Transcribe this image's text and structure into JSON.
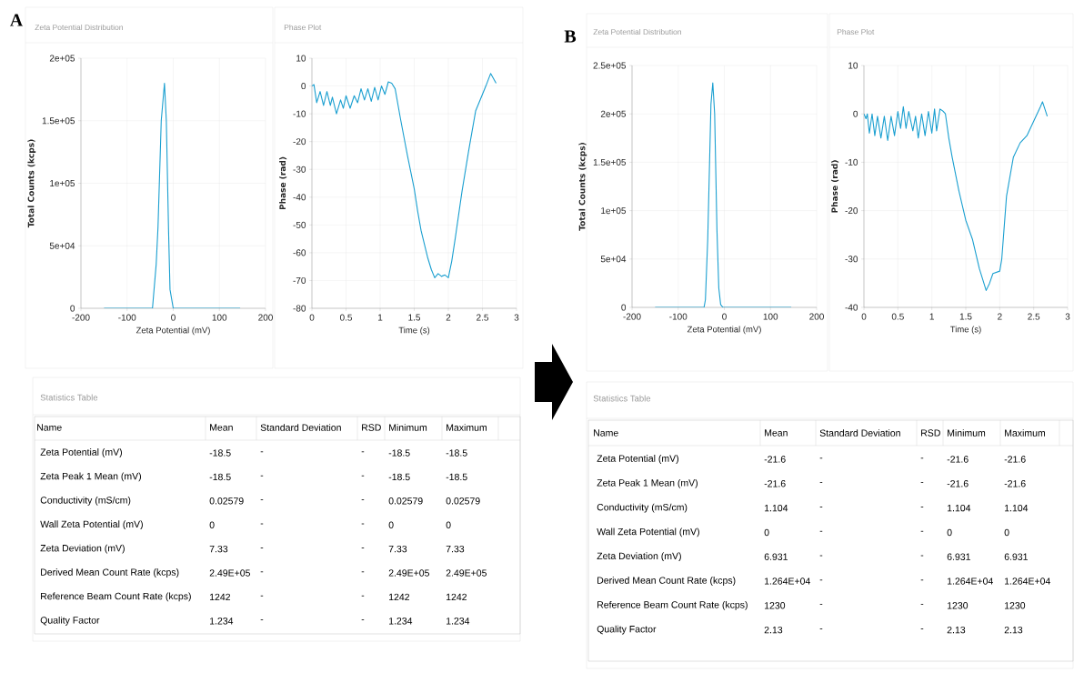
{
  "chart_data": [
    {
      "type": "line",
      "title": "Zeta Potential Distribution",
      "xlabel": "Zeta Potential (mV)",
      "ylabel": "Total Counts (kcps)",
      "annotations": [
        "A"
      ],
      "color": "#1a9fd0",
      "grid": true,
      "x": [
        -150,
        -45,
        -37,
        -33,
        -26,
        -19,
        -15,
        -10,
        -7,
        0,
        145
      ],
      "values": [
        0,
        0,
        35000,
        65000,
        150000,
        180000,
        150000,
        60000,
        15000,
        0,
        0
      ],
      "xlim": [
        -200,
        200
      ],
      "ylim": [
        0,
        200000
      ],
      "xticks": [
        -200,
        -100,
        0,
        100,
        200
      ],
      "yticks": [
        0,
        {
          "value": 50000,
          "label": "5e+04"
        },
        {
          "value": 100000,
          "label": "1e+05"
        },
        {
          "value": 150000,
          "label": "1.5e+05"
        },
        {
          "value": 200000,
          "label": "2e+05"
        }
      ]
    },
    {
      "type": "line",
      "title": "Phase Plot",
      "xlabel": "Time (s)",
      "ylabel": "Phase (rad)",
      "color": "#1a9fd0",
      "grid": true,
      "x": [
        0,
        0.03,
        0.07,
        0.12,
        0.17,
        0.22,
        0.27,
        0.3,
        0.36,
        0.42,
        0.46,
        0.5,
        0.56,
        0.62,
        0.67,
        0.72,
        0.77,
        0.82,
        0.87,
        0.92,
        0.97,
        1.02,
        1.07,
        1.12,
        1.17,
        1.22,
        1.3,
        1.4,
        1.5,
        1.55,
        1.6,
        1.7,
        1.75,
        1.8,
        1.85,
        1.9,
        1.95,
        2.0,
        2.05,
        2.1,
        2.2,
        2.3,
        2.4,
        2.5,
        2.55,
        2.62,
        2.7
      ],
      "values": [
        0,
        0.5,
        -6,
        -2,
        -7,
        -2,
        -7,
        -4,
        -10,
        -5,
        -8,
        -3.5,
        -8,
        -3.5,
        -6,
        -1,
        -5,
        -1,
        -5.5,
        -0.5,
        -5,
        0,
        -3,
        1.5,
        1,
        -1,
        -12,
        -25,
        -37,
        -45,
        -52,
        -62,
        -66,
        -69,
        -67.5,
        -68.5,
        -68,
        -69,
        -63,
        -55,
        -38,
        -23,
        -9,
        -3,
        0,
        4.5,
        1
      ],
      "xlim": [
        0,
        3
      ],
      "ylim": [
        -80,
        10
      ],
      "xticks": [
        0,
        0.5,
        1,
        1.5,
        2,
        2.5,
        3
      ],
      "yticks": [
        -80,
        -70,
        -60,
        -50,
        -40,
        -30,
        -20,
        -10,
        0,
        10
      ]
    },
    {
      "type": "other",
      "title": "Statistics Table",
      "ylabel": "Name",
      "categories": [
        "Mean",
        "Standard Deviation",
        "RSD",
        "Minimum",
        "Maximum"
      ],
      "y_categories": [
        "Zeta Potential (mV)",
        "Zeta Peak 1 Mean (mV)",
        "Conductivity (mS/cm)",
        "Wall Zeta Potential (mV)",
        "Zeta Deviation (mV)",
        "Derived Mean Count Rate (kcps)",
        "Reference Beam Count Rate (kcps)",
        "Quality Factor"
      ],
      "cell_labels": [
        [
          "-18.5",
          "-",
          "-",
          "-18.5",
          "-18.5"
        ],
        [
          "-18.5",
          "-",
          "-",
          "-18.5",
          "-18.5"
        ],
        [
          "0.02579",
          "-",
          "-",
          "0.02579",
          "0.02579"
        ],
        [
          "0",
          "-",
          "-",
          "0",
          "0"
        ],
        [
          "7.33",
          "-",
          "-",
          "7.33",
          "7.33"
        ],
        [
          "2.49E+05",
          "-",
          "-",
          "2.49E+05",
          "2.49E+05"
        ],
        [
          "1242",
          "-",
          "-",
          "1242",
          "1242"
        ],
        [
          "1.234",
          "-",
          "-",
          "1.234",
          "1.234"
        ]
      ]
    },
    {
      "type": "line",
      "title": "Zeta Potential Distribution",
      "xlabel": "Zeta Potential (mV)",
      "ylabel": "Total Counts (kcps)",
      "annotations": [
        "B"
      ],
      "color": "#1a9fd0",
      "grid": true,
      "x": [
        -150,
        -44,
        -41,
        -36,
        -29,
        -25,
        -21,
        -16,
        -12,
        -8,
        -3,
        145
      ],
      "values": [
        0,
        0,
        8000,
        70000,
        210000,
        232000,
        200000,
        80000,
        20000,
        3000,
        0,
        0
      ],
      "xlim": [
        -200,
        200
      ],
      "ylim": [
        0,
        250000
      ],
      "xticks": [
        -200,
        -100,
        0,
        100,
        200
      ],
      "yticks": [
        0,
        {
          "value": 50000,
          "label": "5e+04"
        },
        {
          "value": 100000,
          "label": "1e+05"
        },
        {
          "value": 150000,
          "label": "1.5e+05"
        },
        {
          "value": 200000,
          "label": "2e+05"
        },
        {
          "value": 250000,
          "label": "2.5e+05"
        }
      ]
    },
    {
      "type": "line",
      "title": "Phase Plot",
      "xlabel": "Time (s)",
      "ylabel": "Phase (rad)",
      "color": "#1a9fd0",
      "grid": true,
      "x": [
        0,
        0.03,
        0.05,
        0.08,
        0.12,
        0.16,
        0.2,
        0.25,
        0.3,
        0.35,
        0.4,
        0.45,
        0.5,
        0.54,
        0.58,
        0.62,
        0.66,
        0.72,
        0.76,
        0.8,
        0.85,
        0.9,
        0.95,
        1.0,
        1.04,
        1.07,
        1.12,
        1.17,
        1.2,
        1.25,
        1.3,
        1.4,
        1.5,
        1.6,
        1.7,
        1.8,
        1.85,
        1.9,
        2.0,
        2.03,
        2.1,
        2.2,
        2.3,
        2.4,
        2.5,
        2.6,
        2.63,
        2.7
      ],
      "values": [
        0,
        -1,
        0,
        -4,
        0,
        -4.5,
        -0.5,
        -5,
        -0.5,
        -5.5,
        -0.5,
        -4.5,
        0.5,
        -3,
        1.5,
        -3,
        0.5,
        -3.5,
        -0.5,
        -5,
        0,
        -4.5,
        0.5,
        -4,
        1,
        -3.5,
        1,
        0.5,
        0,
        -5,
        -9,
        -16,
        -22,
        -26,
        -32,
        -36.5,
        -35,
        -33,
        -32.5,
        -30,
        -17,
        -9,
        -6,
        -4.5,
        -1.5,
        1.5,
        2.5,
        -0.5
      ],
      "xlim": [
        0,
        3
      ],
      "ylim": [
        -40,
        10
      ],
      "xticks": [
        0,
        0.5,
        1,
        1.5,
        2,
        2.5,
        3
      ],
      "yticks": [
        -40,
        -30,
        -20,
        -10,
        0,
        10
      ]
    },
    {
      "type": "other",
      "title": "Statistics Table",
      "ylabel": "Name",
      "categories": [
        "Mean",
        "Standard Deviation",
        "RSD",
        "Minimum",
        "Maximum"
      ],
      "y_categories": [
        "Zeta Potential (mV)",
        "Zeta Peak 1 Mean (mV)",
        "Conductivity (mS/cm)",
        "Wall Zeta Potential (mV)",
        "Zeta Deviation (mV)",
        "Derived Mean Count Rate (kcps)",
        "Reference Beam Count Rate (kcps)",
        "Quality Factor"
      ],
      "cell_labels": [
        [
          "-21.6",
          "-",
          "-",
          "-21.6",
          "-21.6"
        ],
        [
          "-21.6",
          "-",
          "-",
          "-21.6",
          "-21.6"
        ],
        [
          "1.104",
          "-",
          "-",
          "1.104",
          "1.104"
        ],
        [
          "0",
          "-",
          "-",
          "0",
          "0"
        ],
        [
          "6.931",
          "-",
          "-",
          "6.931",
          "6.931"
        ],
        [
          "1.264E+04",
          "-",
          "-",
          "1.264E+04",
          "1.264E+04"
        ],
        [
          "1230",
          "-",
          "-",
          "1230",
          "1230"
        ],
        [
          "2.13",
          "-",
          "-",
          "2.13",
          "2.13"
        ]
      ]
    }
  ]
}
